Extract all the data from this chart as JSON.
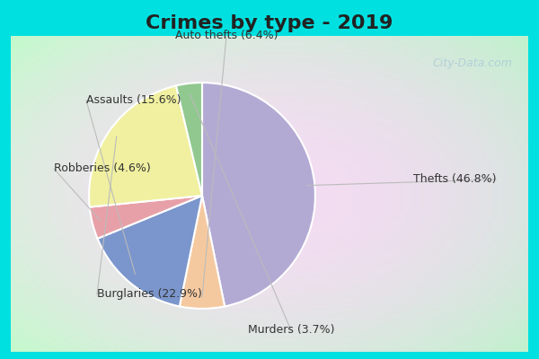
{
  "title": "Crimes by type - 2019",
  "slices": [
    {
      "label": "Thefts",
      "pct": 46.8,
      "color": "#b3aad4"
    },
    {
      "label": "Auto thefts",
      "pct": 6.4,
      "color": "#f5c9a0"
    },
    {
      "label": "Assaults",
      "pct": 15.6,
      "color": "#7b96cc"
    },
    {
      "label": "Robberies",
      "pct": 4.6,
      "color": "#e8a0a8"
    },
    {
      "label": "Burglaries",
      "pct": 22.9,
      "color": "#f0f0a0"
    },
    {
      "label": "Murders",
      "pct": 3.7,
      "color": "#90c890"
    }
  ],
  "border_color": "#00e0e0",
  "border_thickness": 8,
  "title_fontsize": 16,
  "label_fontsize": 9,
  "watermark": "City-Data.com"
}
